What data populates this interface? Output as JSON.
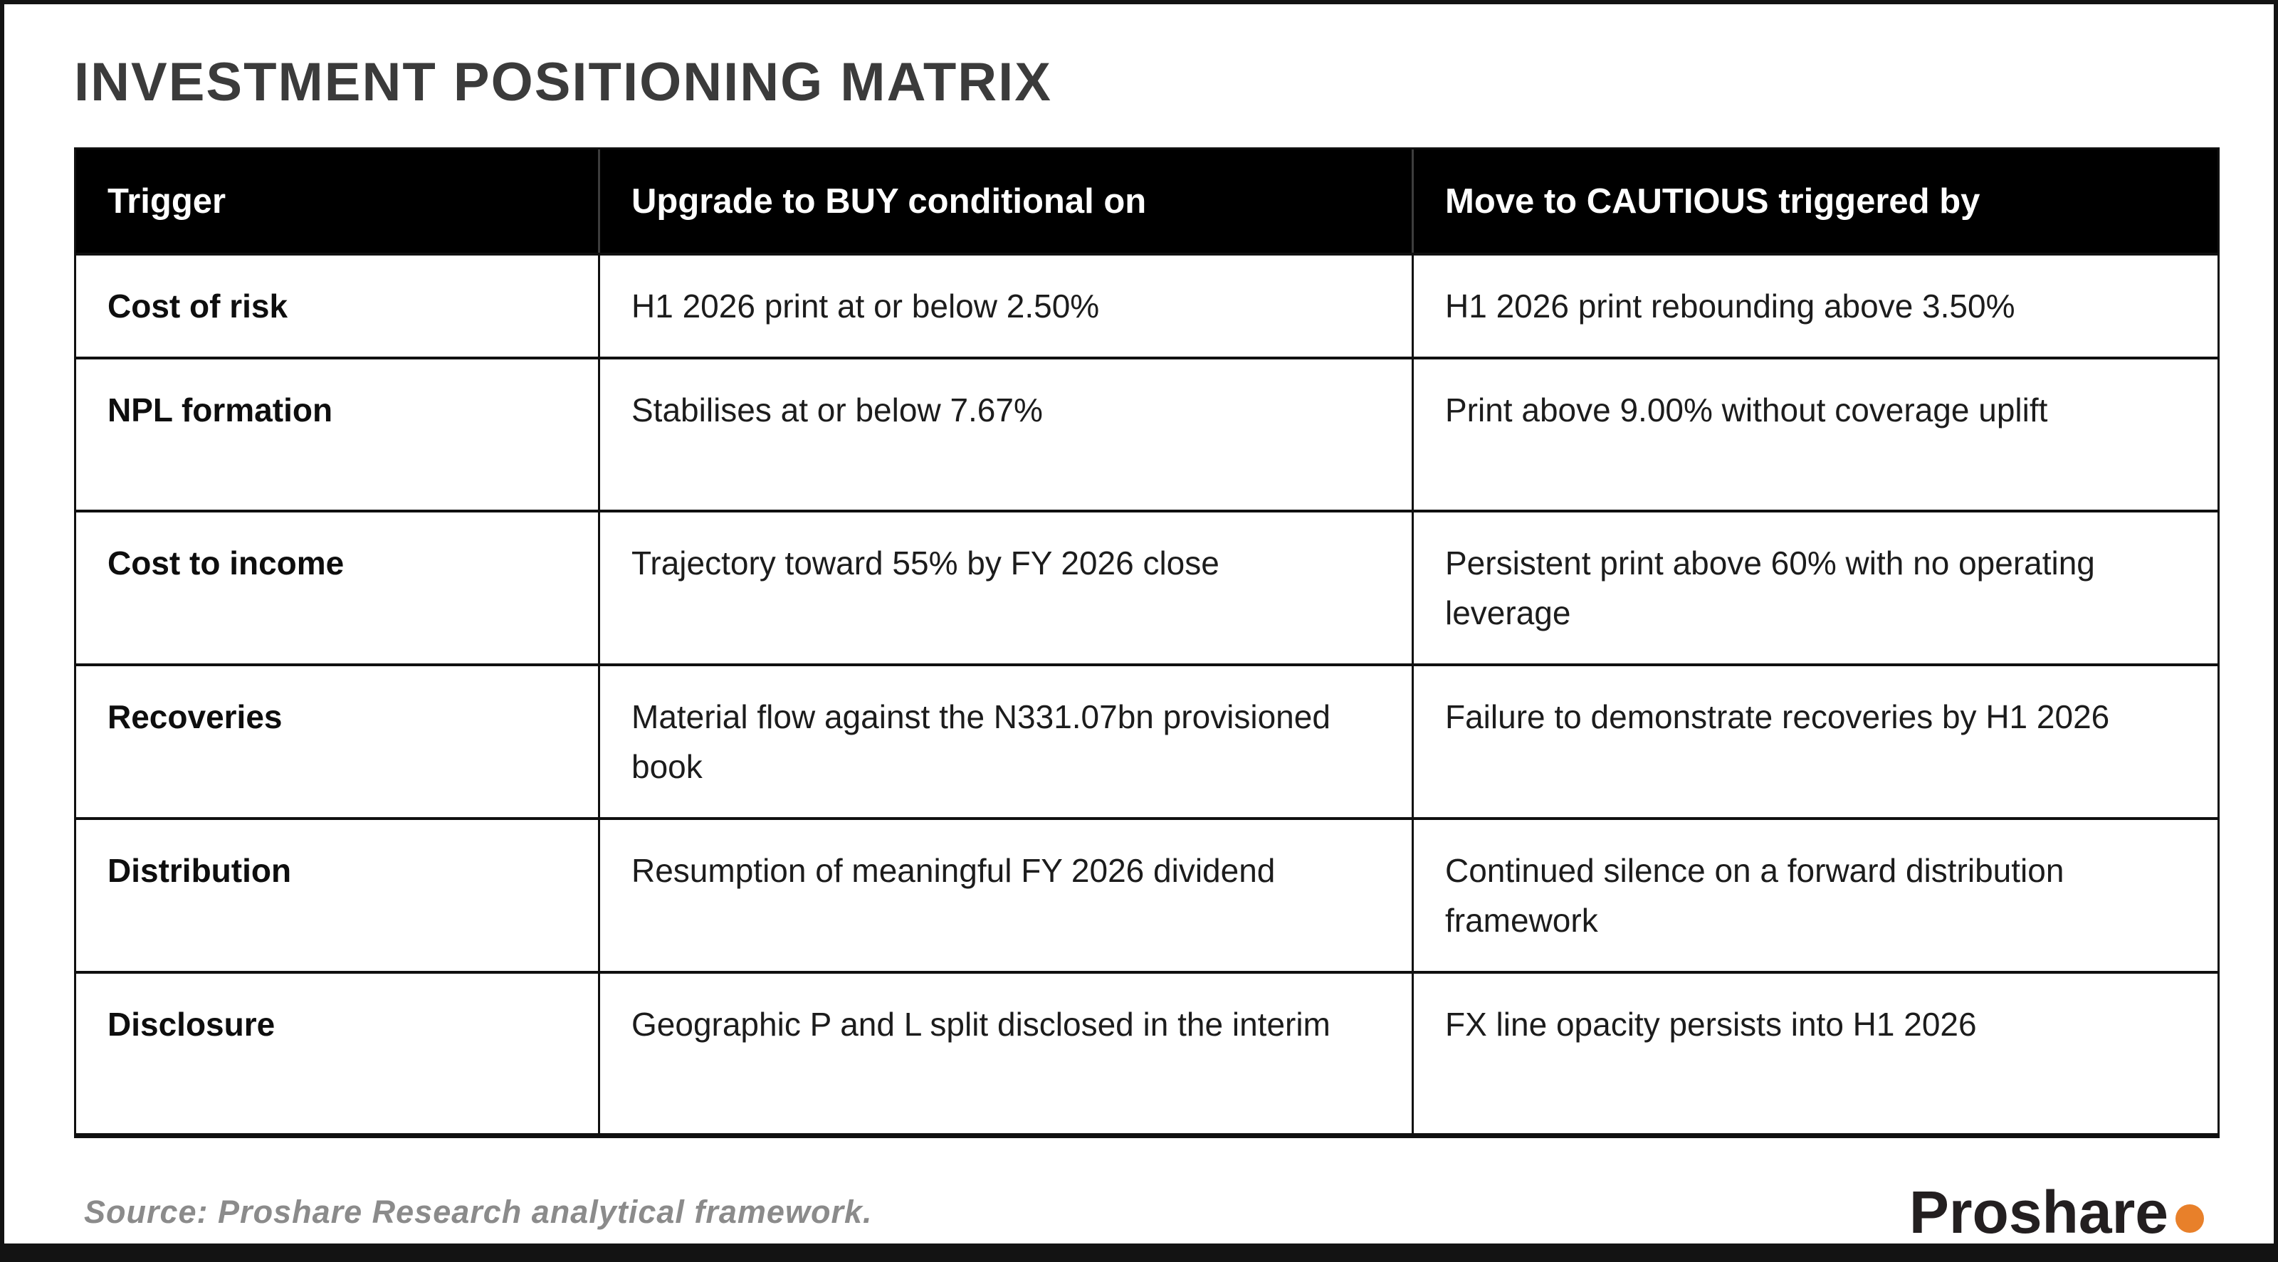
{
  "title": "INVESTMENT POSITIONING MATRIX",
  "table": {
    "headers": [
      "Trigger",
      "Upgrade to BUY conditional on",
      "Move to CAUTIOUS triggered by"
    ],
    "rows": [
      {
        "trigger": "Cost of risk",
        "buy": "H1 2026 print at or below 2.50%",
        "cautious": "H1 2026 print rebounding above 3.50%"
      },
      {
        "trigger": "NPL formation",
        "buy": "Stabilises at or below 7.67%",
        "cautious": "Print above 9.00% without coverage uplift"
      },
      {
        "trigger": "Cost to income",
        "buy": "Trajectory toward 55% by FY 2026 close",
        "cautious": "Persistent print above 60% with no operating leverage"
      },
      {
        "trigger": "Recoveries",
        "buy": "Material flow against the N331.07bn provisioned book",
        "cautious": "Failure to demonstrate recoveries by H1 2026"
      },
      {
        "trigger": "Distribution",
        "buy": "Resumption of meaningful FY 2026 dividend",
        "cautious": "Continued silence on a forward distribution framework"
      },
      {
        "trigger": "Disclosure",
        "buy": "Geographic P and L split disclosed in the interim",
        "cautious": "FX line opacity persists into H1 2026"
      }
    ]
  },
  "footer": {
    "source": "Source: Proshare Research analytical framework.",
    "logo_text": "Proshare"
  },
  "colors": {
    "accent_orange": "#e8802a",
    "header_bg": "#000000",
    "title_color": "#3b3b3b",
    "source_color": "#8b8b8b",
    "frame_color": "#131313"
  }
}
